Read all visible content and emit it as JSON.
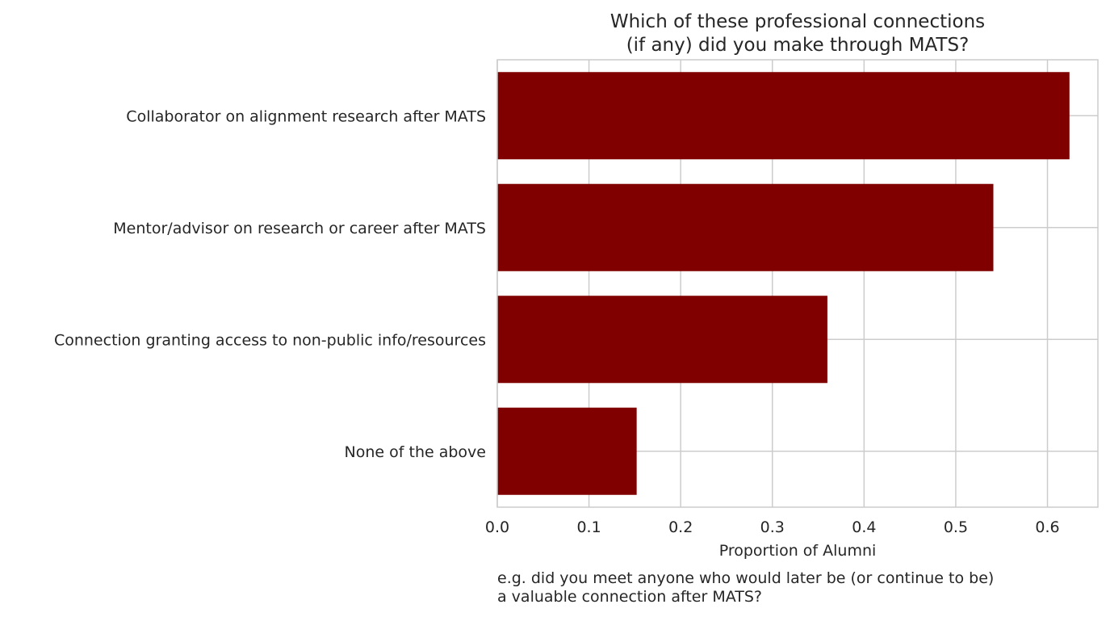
{
  "chart_data": {
    "type": "bar",
    "orientation": "horizontal",
    "title": "Which of these professional connections\n(if any) did you make through MATS?",
    "xlabel": "Proportion of Alumni",
    "ylabel": "",
    "categories": [
      "Collaborator on alignment research after MATS",
      "Mentor/advisor on research or career after MATS",
      "Connection granting access to non-public info/resources",
      "None of the above"
    ],
    "values": [
      0.624,
      0.541,
      0.36,
      0.152
    ],
    "xlim": [
      0,
      0.655
    ],
    "xticks": [
      0.0,
      0.1,
      0.2,
      0.3,
      0.4,
      0.5,
      0.6
    ],
    "xtick_labels": [
      "0.0",
      "0.1",
      "0.2",
      "0.3",
      "0.4",
      "0.5",
      "0.6"
    ],
    "grid": true,
    "bar_color": "#800000",
    "annotation": "e.g. did you meet anyone who would later be (or continue to be)\na valuable connection after MATS?"
  }
}
